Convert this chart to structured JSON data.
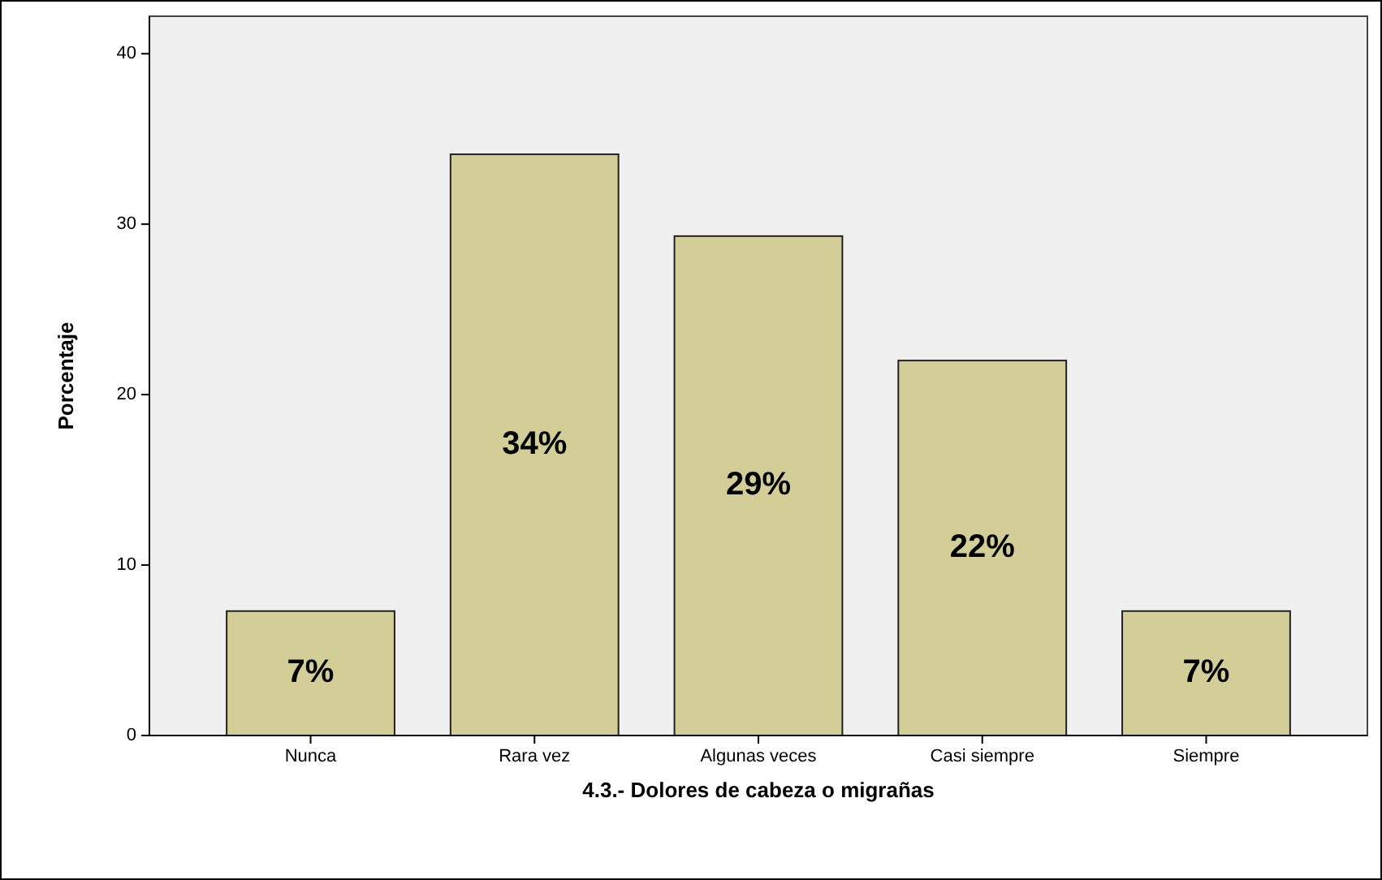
{
  "chart_data": {
    "type": "bar",
    "xlabel": "4.3.- Dolores de cabeza o migrañas",
    "ylabel": "Porcentaje",
    "categories": [
      "Nunca",
      "Rara vez",
      "Algunas veces",
      "Casi siempre",
      "Siempre"
    ],
    "values": [
      7.3,
      34.1,
      29.3,
      22.0,
      7.3
    ],
    "value_labels": [
      "7%",
      "34%",
      "29%",
      "22%",
      "7%"
    ],
    "color": "#d3ce97",
    "ylim": [
      0,
      42.2
    ],
    "yticks": [
      0,
      10,
      20,
      30,
      40
    ],
    "grid": false
  }
}
